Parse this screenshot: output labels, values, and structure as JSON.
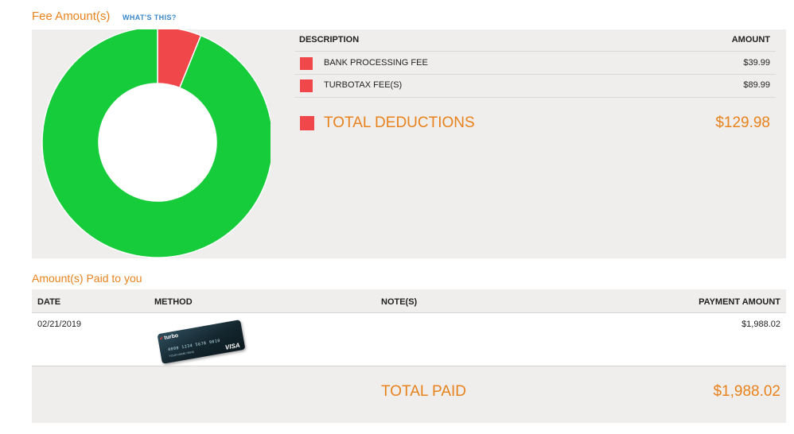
{
  "fee_section": {
    "title": "Fee Amount(s)",
    "whats_this": "WHAT'S THIS?",
    "col_description": "DESCRIPTION",
    "col_amount": "AMOUNT",
    "rows": [
      {
        "description": "BANK PROCESSING FEE",
        "amount": "$39.99",
        "color": "#f0484a"
      },
      {
        "description": "TURBOTAX FEE(S)",
        "amount": "$89.99",
        "color": "#f0484a"
      }
    ],
    "total_label": "TOTAL DEDUCTIONS",
    "total_amount": "$129.98",
    "total_color": "#f0484a"
  },
  "donut": {
    "segments": [
      {
        "value": 129.98,
        "color": "#f0484a"
      },
      {
        "value": 1988.02,
        "color": "#17cc3a"
      }
    ]
  },
  "paid_section": {
    "title": "Amount(s) Paid to you",
    "col_date": "DATE",
    "col_method": "METHOD",
    "col_notes": "NOTE(S)",
    "col_payment": "PAYMENT AMOUNT",
    "rows": [
      {
        "date": "02/21/2019",
        "method_icon": "turbo-visa-card-icon",
        "card_brand": "turbo",
        "card_number": "4000 1234 5678 9010",
        "card_holder": "YOUR NAME HERE",
        "card_network": "VISA",
        "notes": "",
        "amount": "$1,988.02"
      }
    ],
    "total_label": "TOTAL PAID",
    "total_amount": "$1,988.02"
  }
}
